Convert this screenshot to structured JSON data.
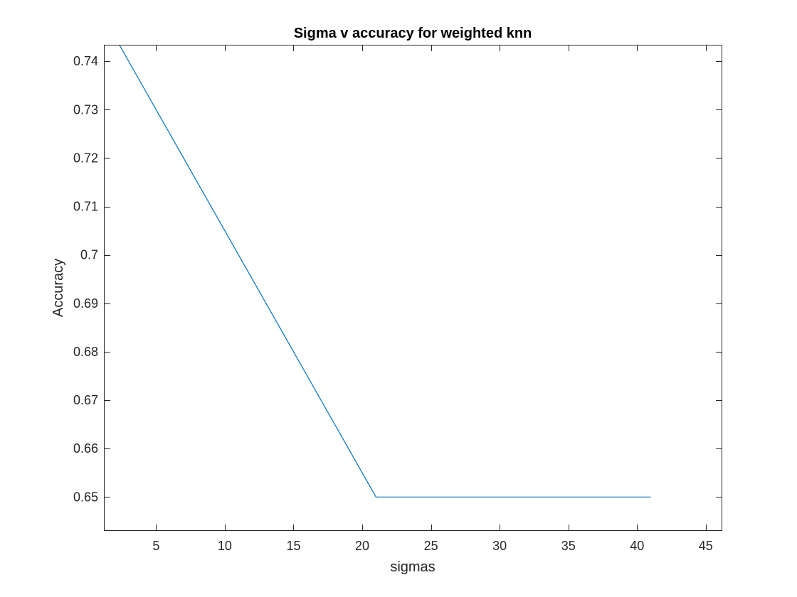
{
  "chart_data": {
    "type": "line",
    "title": "Sigma v accuracy for weighted knn",
    "xlabel": "sigmas",
    "ylabel": "Accuracy",
    "xlim": [
      1.2,
      46.2
    ],
    "ylim": [
      0.643,
      0.7434
    ],
    "xticks": [
      5,
      10,
      15,
      20,
      25,
      30,
      35,
      40,
      45
    ],
    "xtick_labels": [
      "5",
      "10",
      "15",
      "20",
      "25",
      "30",
      "35",
      "40",
      "45"
    ],
    "yticks": [
      0.65,
      0.66,
      0.67,
      0.68,
      0.69,
      0.7,
      0.71,
      0.72,
      0.73,
      0.74
    ],
    "ytick_labels": [
      "0.65",
      "0.66",
      "0.67",
      "0.68",
      "0.69",
      "0.7",
      "0.71",
      "0.72",
      "0.73",
      "0.74"
    ],
    "grid": false,
    "series": [
      {
        "color": "#0072bd",
        "x": [
          1,
          21,
          41
        ],
        "y": [
          0.75,
          0.65,
          0.65
        ]
      }
    ]
  }
}
